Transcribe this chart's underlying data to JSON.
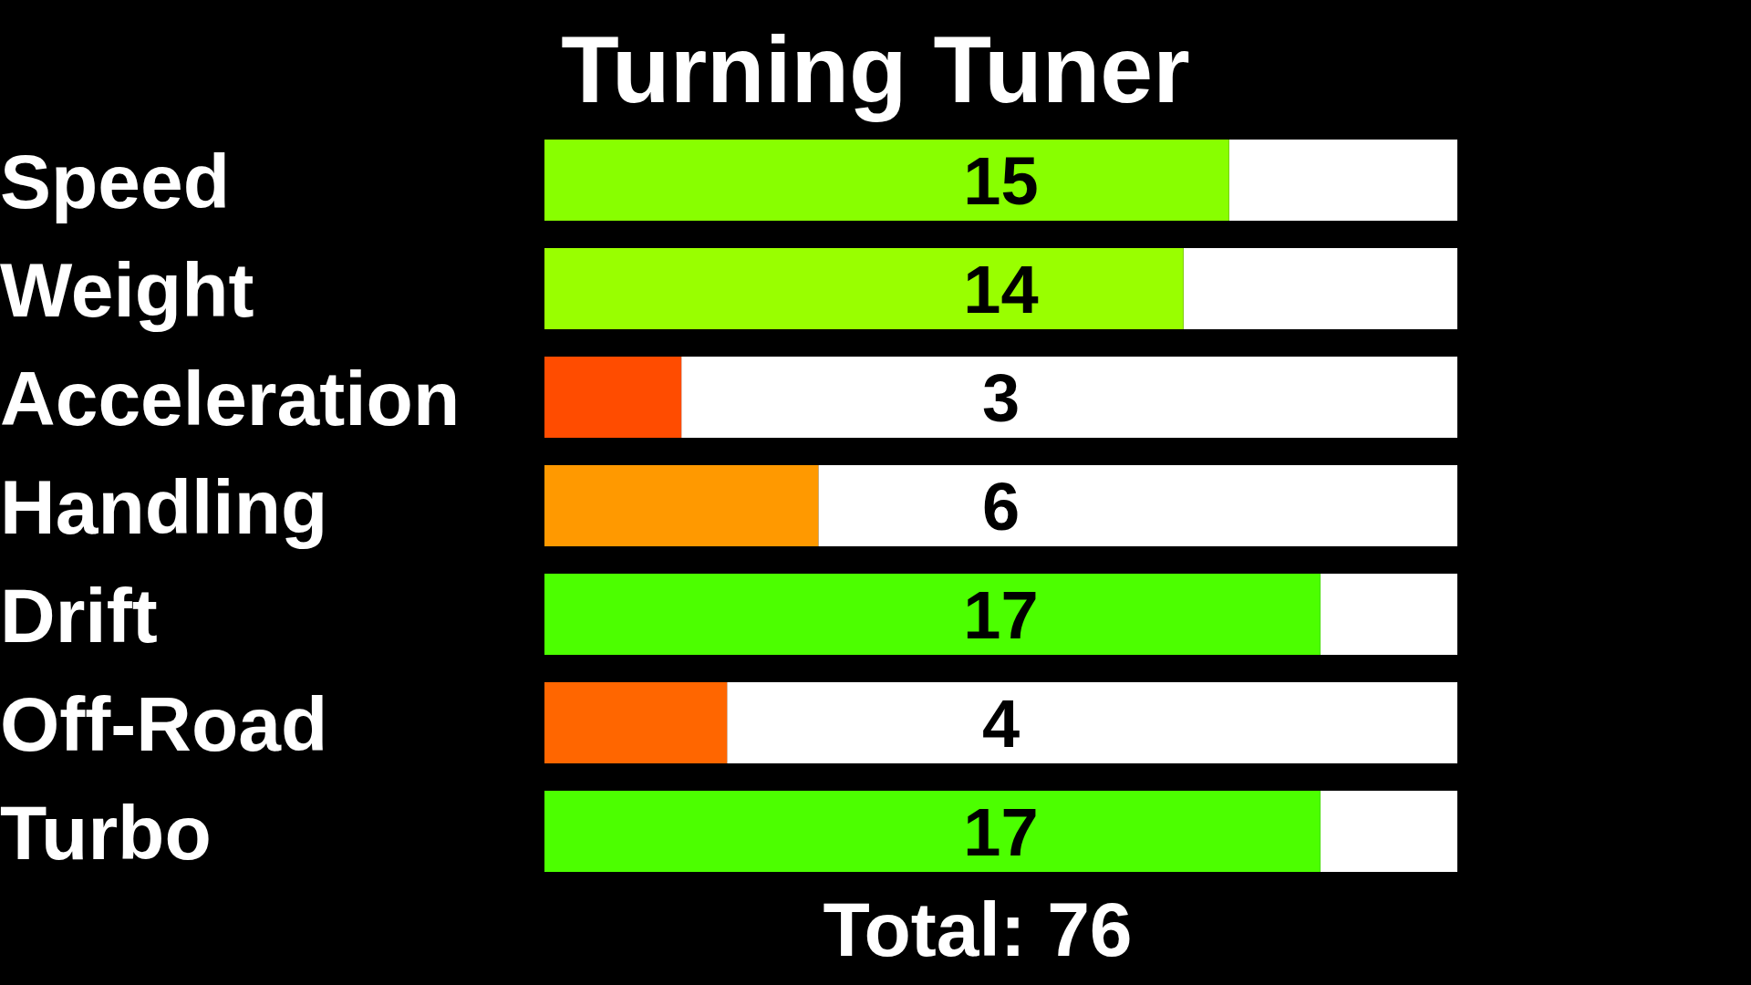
{
  "chart_data": {
    "type": "bar",
    "orientation": "horizontal",
    "title": "Turning Tuner",
    "categories": [
      "Speed",
      "Weight",
      "Acceleration",
      "Handling",
      "Drift",
      "Off-Road",
      "Turbo"
    ],
    "values": [
      15,
      14,
      3,
      6,
      17,
      4,
      17
    ],
    "colors": [
      "#88ff00",
      "#99ff00",
      "#ff4c00",
      "#ff9900",
      "#4cff00",
      "#ff6600",
      "#4cff00"
    ],
    "xlim": [
      0,
      20
    ],
    "tick_labels": "y",
    "data_labels": true,
    "annotations": [
      "Total: 76"
    ]
  }
}
